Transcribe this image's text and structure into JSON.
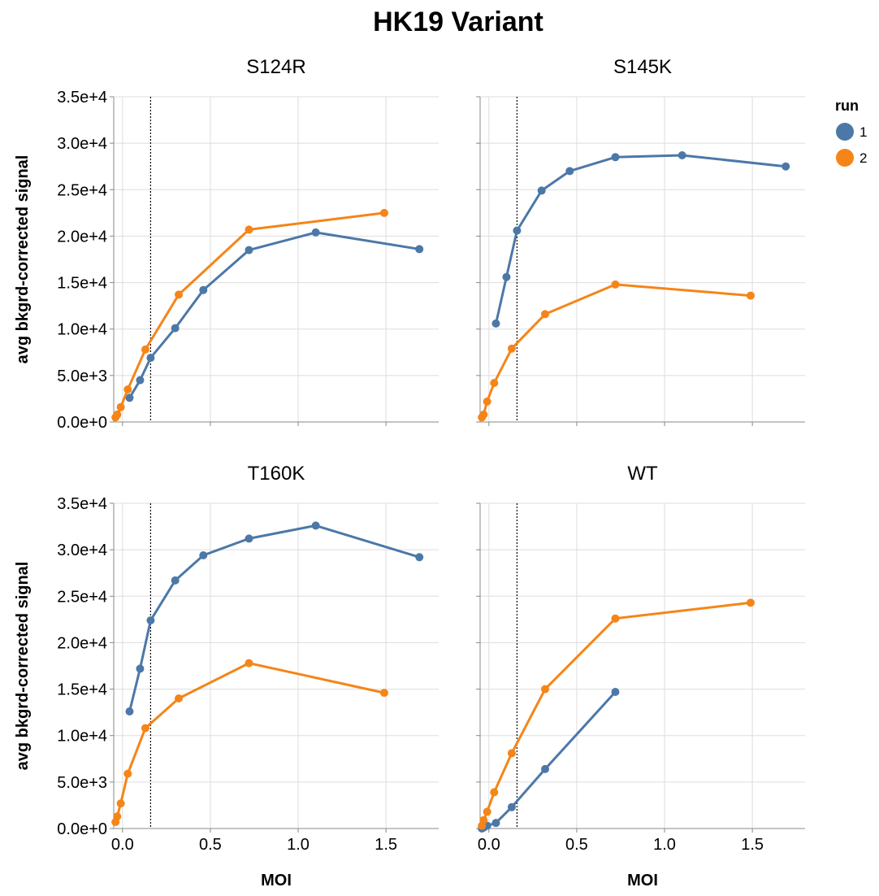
{
  "chart_data": {
    "type": "line",
    "title": "HK19 Variant",
    "xlabel": "MOI",
    "ylabel": "avg bkgrd-corrected signal",
    "xlim": [
      -0.05,
      1.8
    ],
    "ylim": [
      0,
      35000
    ],
    "x_ticks": [
      0,
      0.5,
      1,
      1.5
    ],
    "x_tick_labels": [
      "0.0",
      "0.5",
      "1.0",
      "1.5"
    ],
    "y_ticks": [
      0,
      5000,
      10000,
      15000,
      20000,
      25000,
      30000,
      35000
    ],
    "y_tick_labels": [
      "0.0e+0",
      "5.0e+3",
      "1.0e+4",
      "1.5e+4",
      "2.0e+4",
      "2.5e+4",
      "3.0e+4",
      "3.5e+4"
    ],
    "reference_line_x": 0.16,
    "grid": true,
    "legend": {
      "title": "run",
      "position": "top-right",
      "entries": [
        {
          "label": "1",
          "color": "#4c78a8"
        },
        {
          "label": "2",
          "color": "#f58518"
        }
      ]
    },
    "facets": [
      {
        "name": "S124R",
        "series": [
          {
            "name": "1",
            "x": [
              0.04,
              0.1,
              0.16,
              0.3,
              0.46,
              0.72,
              1.1,
              1.69
            ],
            "y": [
              2600,
              4500,
              6900,
              10100,
              14200,
              18500,
              20400,
              18600
            ]
          },
          {
            "name": "2",
            "x": [
              -0.04,
              -0.03,
              -0.01,
              0.03,
              0.13,
              0.32,
              0.72,
              1.49
            ],
            "y": [
              500,
              800,
              1600,
              3500,
              7800,
              13700,
              20700,
              22500
            ]
          }
        ]
      },
      {
        "name": "S145K",
        "series": [
          {
            "name": "1",
            "x": [
              0.04,
              0.1,
              0.16,
              0.3,
              0.46,
              0.72,
              1.1,
              1.69
            ],
            "y": [
              10600,
              15600,
              20600,
              24900,
              27000,
              28500,
              28700,
              27500
            ]
          },
          {
            "name": "2",
            "x": [
              -0.04,
              -0.03,
              -0.01,
              0.03,
              0.13,
              0.32,
              0.72,
              1.49
            ],
            "y": [
              500,
              800,
              2200,
              4200,
              7900,
              11600,
              14800,
              13600
            ]
          }
        ]
      },
      {
        "name": "T160K",
        "series": [
          {
            "name": "1",
            "x": [
              0.04,
              0.1,
              0.16,
              0.3,
              0.46,
              0.72,
              1.1,
              1.69
            ],
            "y": [
              12600,
              17200,
              22400,
              26700,
              29400,
              31200,
              32600,
              29200
            ]
          },
          {
            "name": "2",
            "x": [
              -0.04,
              -0.03,
              -0.01,
              0.03,
              0.13,
              0.32,
              0.72,
              1.49
            ],
            "y": [
              700,
              1300,
              2700,
              5900,
              10800,
              14000,
              17800,
              14600
            ]
          }
        ]
      },
      {
        "name": "WT",
        "series": [
          {
            "name": "1",
            "x": [
              -0.04,
              -0.03,
              -0.01,
              0.04,
              0.13,
              0.32,
              0.72
            ],
            "y": [
              0,
              100,
              300,
              600,
              2300,
              6400,
              14700
            ]
          },
          {
            "name": "2",
            "x": [
              -0.04,
              -0.03,
              -0.01,
              0.03,
              0.13,
              0.32,
              0.72,
              1.49
            ],
            "y": [
              300,
              900,
              1800,
              3900,
              8100,
              15000,
              22600,
              24300
            ]
          }
        ]
      }
    ]
  }
}
